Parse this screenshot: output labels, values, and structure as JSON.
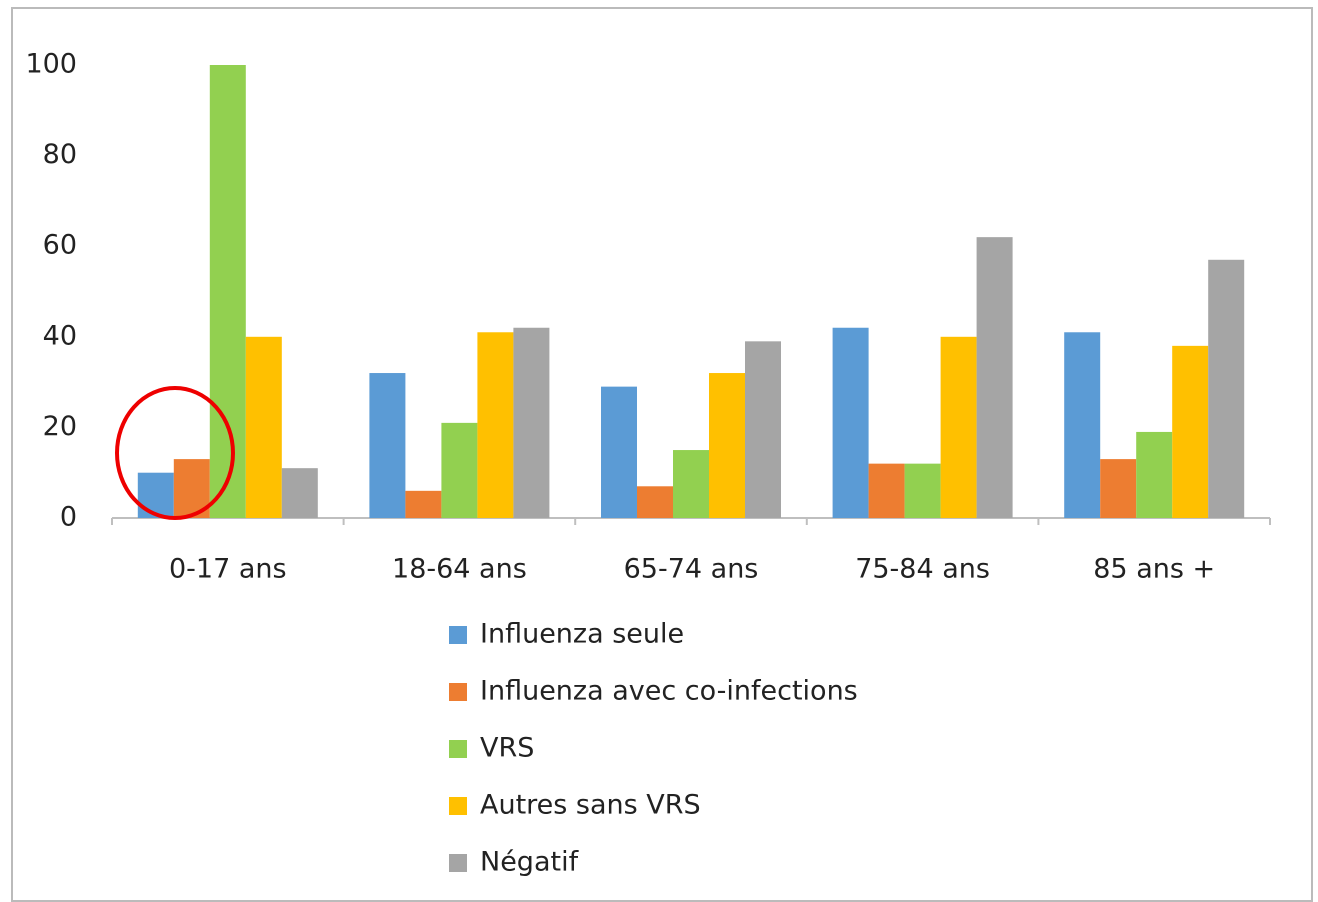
{
  "chart_data": {
    "type": "bar",
    "categories": [
      "0-17 ans",
      "18-64 ans",
      "65-74 ans",
      "75-84 ans",
      "85 ans +"
    ],
    "series": [
      {
        "name": "Influenza seule",
        "color": "#5b9bd5",
        "values": [
          10,
          32,
          29,
          42,
          41
        ]
      },
      {
        "name": "Influenza avec co-infections",
        "color": "#ed7d31",
        "values": [
          13,
          6,
          7,
          12,
          13
        ]
      },
      {
        "name": "VRS",
        "color": "#92d050",
        "values": [
          100,
          21,
          15,
          12,
          19
        ]
      },
      {
        "name": "Autres sans VRS",
        "color": "#ffc000",
        "values": [
          40,
          41,
          32,
          40,
          38
        ]
      },
      {
        "name": "Négatif",
        "color": "#a5a5a5",
        "values": [
          11,
          42,
          39,
          62,
          57
        ]
      }
    ],
    "ylim": [
      0,
      100
    ],
    "yticks": [
      0,
      20,
      40,
      60,
      80,
      100
    ],
    "grid": false,
    "legend": "bottom"
  }
}
